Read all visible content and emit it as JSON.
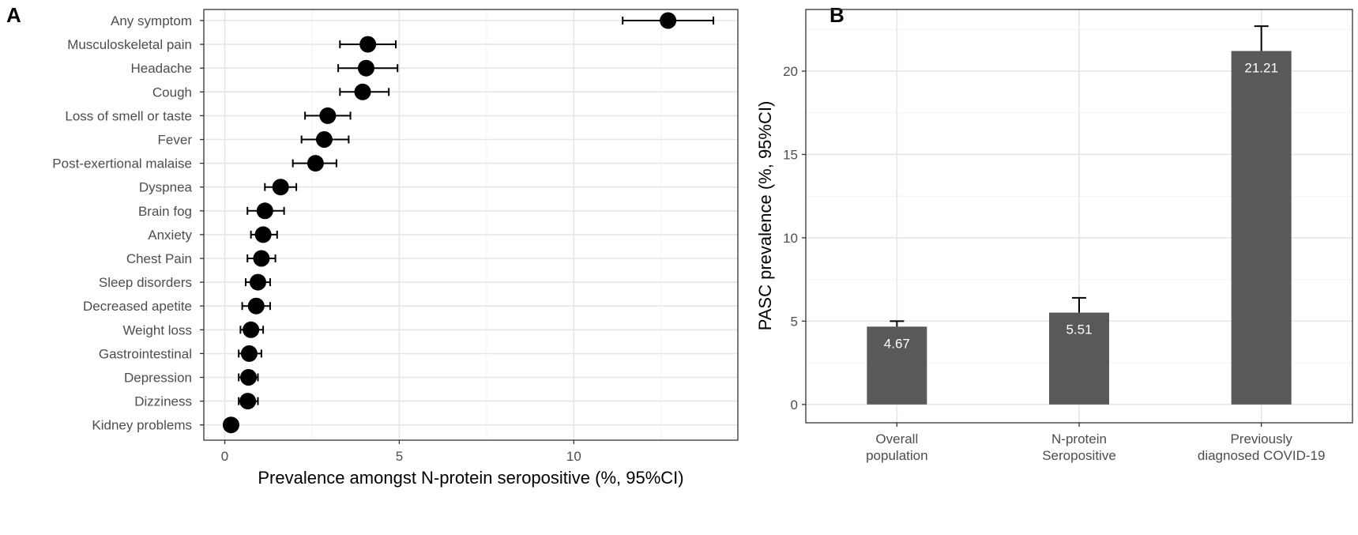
{
  "panels": {
    "a_letter": "A",
    "b_letter": "B"
  },
  "colors": {
    "point": "#000000",
    "bar": "#595959",
    "grid": "#e6e6e6",
    "axis_text": "#4d4d4d"
  },
  "chart_data": [
    {
      "type": "scatter",
      "panel": "A",
      "xlabel": "Prevalence amongst N-protein seropositive (%, 95%CI)",
      "ylabel": "",
      "xlim": [
        -0.6,
        14.7
      ],
      "xticks": [
        0,
        5,
        10
      ],
      "grid": true,
      "categories": [
        "Any symptom",
        "Musculoskeletal pain",
        "Headache",
        "Cough",
        "Loss of smell or taste",
        "Fever",
        "Post-exertional malaise",
        "Dyspnea",
        "Brain fog",
        "Anxiety",
        "Chest Pain",
        "Sleep disorders",
        "Decreased apetite",
        "Weight loss",
        "Gastrointestinal",
        "Depression",
        "Dizziness",
        "Kidney problems"
      ],
      "values": [
        12.7,
        4.1,
        4.05,
        3.95,
        2.95,
        2.85,
        2.6,
        1.6,
        1.15,
        1.1,
        1.05,
        0.95,
        0.9,
        0.75,
        0.7,
        0.68,
        0.66,
        0.18
      ],
      "ci_low": [
        11.4,
        3.3,
        3.25,
        3.3,
        2.3,
        2.2,
        1.95,
        1.15,
        0.65,
        0.75,
        0.65,
        0.6,
        0.5,
        0.45,
        0.4,
        0.4,
        0.4,
        0.18
      ],
      "ci_high": [
        14.0,
        4.9,
        4.95,
        4.7,
        3.6,
        3.55,
        3.2,
        2.05,
        1.7,
        1.5,
        1.45,
        1.3,
        1.3,
        1.1,
        1.05,
        0.95,
        0.95,
        0.18
      ]
    },
    {
      "type": "bar",
      "panel": "B",
      "ylabel": "PASC prevalence (%, 95%CI)",
      "xlabel": "",
      "ylim": [
        -1.1,
        23.7
      ],
      "yticks": [
        0,
        5,
        10,
        15,
        20
      ],
      "grid": true,
      "categories": [
        [
          "Overall",
          "population"
        ],
        [
          "N-protein",
          "Seropositive"
        ],
        [
          "Previously",
          "diagnosed COVID-19"
        ]
      ],
      "values": [
        4.67,
        5.51,
        21.21
      ],
      "value_labels": [
        "4.67",
        "5.51",
        "21.21"
      ],
      "ci_high": [
        5.0,
        6.4,
        22.7
      ]
    }
  ]
}
